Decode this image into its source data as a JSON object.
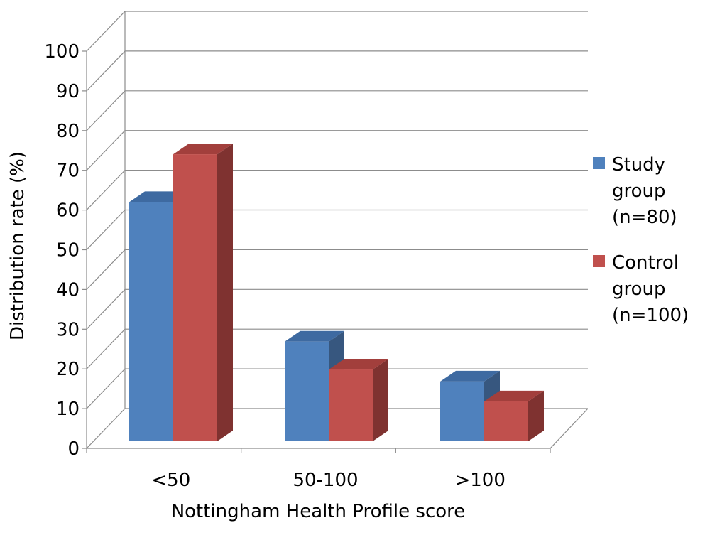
{
  "chart_data": {
    "type": "bar",
    "title": "",
    "xlabel": "Nottingham Health Profile score",
    "ylabel": "Distribution rate (%)",
    "ylim": [
      0,
      100
    ],
    "yticks": [
      "0",
      "10",
      "20",
      "30",
      "40",
      "50",
      "60",
      "70",
      "80",
      "90",
      "100"
    ],
    "categories": [
      "<50",
      "50-100",
      ">100"
    ],
    "series": [
      {
        "name": "Study group (n=80)",
        "values": [
          60,
          25,
          15
        ],
        "color": "#4f81bd",
        "top_color": "#3e6aa1",
        "side_color": "#37577f"
      },
      {
        "name": "Control group (n=100)",
        "values": [
          72,
          18,
          10
        ],
        "color": "#c0504d",
        "top_color": "#a23f3c",
        "side_color": "#7f3230"
      }
    ],
    "legend": {
      "position": "right",
      "entries": [
        {
          "lines": [
            "Study",
            "group",
            "(n=80)"
          ]
        },
        {
          "lines": [
            "Control",
            "group",
            "(n=100)"
          ]
        }
      ]
    },
    "grid": true,
    "style": "3d-clustered-column"
  }
}
